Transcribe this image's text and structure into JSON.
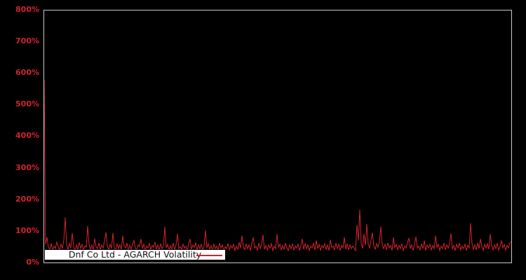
{
  "chart": {
    "background": "#000000",
    "plot_border_color": "#c9c9c9",
    "series_color": "#d2232e",
    "tick_label_color": "#d2232e",
    "y_ticks": [
      "800%",
      "700%",
      "600%",
      "500%",
      "400%",
      "300%",
      "200%",
      "100%",
      "0%"
    ],
    "legend": {
      "label": "Dnf Co Ltd - AGARCH Volatility",
      "line_color": "#d2232e",
      "background": "#ffffff",
      "border_color": "#000000"
    }
  },
  "chart_data": {
    "type": "line",
    "title": "",
    "xlabel": "",
    "ylabel": "",
    "ylim": [
      0,
      800
    ],
    "y_tick_interval": 100,
    "y_unit": "%",
    "grid": false,
    "legend_position": "bottom-left-inside",
    "series": [
      {
        "name": "Dnf Co Ltd - AGARCH Volatility",
        "unit": "%",
        "values": [
          580,
          58,
          80,
          48,
          42,
          60,
          38,
          52,
          45,
          65,
          50,
          40,
          58,
          44,
          72,
          143,
          55,
          42,
          60,
          46,
          94,
          50,
          38,
          56,
          42,
          64,
          45,
          58,
          40,
          52,
          48,
          116,
          58,
          42,
          55,
          38,
          76,
          50,
          44,
          62,
          40,
          55,
          46,
          68,
          96,
          52,
          40,
          58,
          45,
          94,
          48,
          38,
          60,
          44,
          56,
          40,
          85,
          52,
          46,
          62,
          38,
          54,
          42,
          58,
          70,
          46,
          40,
          56,
          50,
          75,
          44,
          58,
          38,
          52,
          46,
          62,
          40,
          55,
          48,
          65,
          42,
          56,
          38,
          60,
          44,
          52,
          114,
          46,
          58,
          40,
          54,
          42,
          62,
          38,
          56,
          91,
          44,
          50,
          40,
          58,
          46,
          52,
          38,
          60,
          75,
          42,
          55,
          48,
          62,
          40,
          56,
          44,
          58,
          38,
          52,
          102,
          46,
          60,
          42,
          54,
          38,
          58,
          44,
          52,
          40,
          62,
          46,
          56,
          38,
          50,
          44,
          60,
          40,
          54,
          46,
          58,
          38,
          52,
          42,
          64,
          46,
          85,
          50,
          40,
          58,
          44,
          56,
          38,
          60,
          80,
          46,
          52,
          38,
          62,
          44,
          58,
          88,
          42,
          54,
          40,
          56,
          46,
          60,
          38,
          52,
          44,
          90,
          48,
          58,
          40,
          54,
          42,
          62,
          46,
          38,
          56,
          44,
          60,
          40,
          52,
          46,
          58,
          38,
          54,
          75,
          42,
          60,
          44,
          56,
          38,
          52,
          46,
          62,
          40,
          70,
          44,
          58,
          38,
          54,
          46,
          60,
          42,
          56,
          38,
          72,
          48,
          52,
          40,
          62,
          44,
          58,
          38,
          54,
          46,
          80,
          42,
          60,
          40,
          56,
          44,
          52,
          46,
          38,
          120,
          70,
          168,
          60,
          45,
          90,
          55,
          122,
          58,
          46,
          70,
          95,
          52,
          42,
          60,
          48,
          66,
          114,
          55,
          44,
          58,
          40,
          62,
          46,
          54,
          38,
          80,
          48,
          58,
          40,
          54,
          44,
          60,
          38,
          52,
          46,
          62,
          78,
          44,
          56,
          38,
          58,
          82,
          46,
          52,
          40,
          60,
          44,
          70,
          38,
          56,
          46,
          58,
          40,
          54,
          44,
          85,
          48,
          58,
          38,
          52,
          44,
          62,
          40,
          56,
          46,
          60,
          92,
          44,
          54,
          38,
          58,
          46,
          62,
          40,
          52,
          44,
          58,
          38,
          54,
          46,
          125,
          60,
          42,
          56,
          40,
          62,
          44,
          75,
          52,
          38,
          58,
          46,
          60,
          42,
          90,
          54,
          40,
          56,
          44,
          62,
          38,
          52,
          70,
          46,
          58,
          40,
          54,
          46,
          62,
          65
        ]
      }
    ]
  }
}
